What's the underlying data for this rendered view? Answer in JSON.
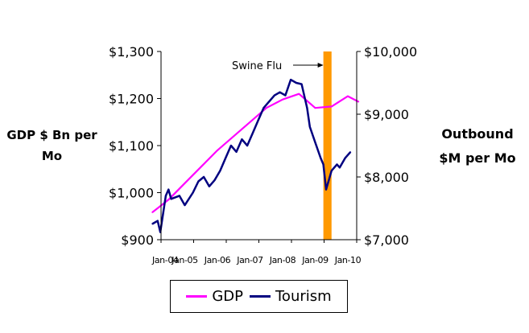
{
  "chart_data": {
    "type": "line",
    "title": "",
    "ylabel": "GDP $ Bn per Mo",
    "y2label": "Outbound $M per Mo",
    "ylim": [
      900,
      1300
    ],
    "y2lim": [
      7000,
      10000
    ],
    "yticks": [
      "$900",
      "$1,000",
      "$1,100",
      "$1,200",
      "$1,300"
    ],
    "y2ticks": [
      "$7,000",
      "$8,000",
      "$9,000",
      "$10,000"
    ],
    "xticks": [
      "Jan-04",
      "Jan-05",
      "Jan-06",
      "Jan-07",
      "Jan-08",
      "Jan-09",
      "Jan-10"
    ],
    "legend_position": "bottom",
    "annotation": {
      "text": "Swine Flu",
      "start": "Apr-09",
      "end": "Jul-09",
      "color": "#FF9900"
    },
    "series": [
      {
        "name": "GDP",
        "axis": "left",
        "color": "#FF00FF",
        "points": [
          [
            "Jan-04",
            958
          ],
          [
            "Jul-04",
            985
          ],
          [
            "Jan-05",
            1020
          ],
          [
            "Jul-05",
            1055
          ],
          [
            "Jan-06",
            1090
          ],
          [
            "Jul-06",
            1120
          ],
          [
            "Jan-07",
            1150
          ],
          [
            "Jul-07",
            1180
          ],
          [
            "Jan-08",
            1198
          ],
          [
            "Jul-08",
            1210
          ],
          [
            "Jan-09",
            1180
          ],
          [
            "Jul-09",
            1183
          ],
          [
            "Jan-10",
            1205
          ],
          [
            "May-10",
            1193
          ]
        ]
      },
      {
        "name": "Tourism",
        "axis": "right",
        "color": "#000080",
        "points": [
          [
            "Jan-04",
            7250
          ],
          [
            "Mar-04",
            7300
          ],
          [
            "Apr-04",
            7120
          ],
          [
            "Jun-04",
            7700
          ],
          [
            "Jul-04",
            7800
          ],
          [
            "Aug-04",
            7650
          ],
          [
            "Nov-04",
            7700
          ],
          [
            "Jan-05",
            7550
          ],
          [
            "Apr-05",
            7750
          ],
          [
            "Jun-05",
            7930
          ],
          [
            "Aug-05",
            8000
          ],
          [
            "Oct-05",
            7850
          ],
          [
            "Dec-05",
            7950
          ],
          [
            "Feb-06",
            8100
          ],
          [
            "Apr-06",
            8300
          ],
          [
            "Jun-06",
            8500
          ],
          [
            "Aug-06",
            8400
          ],
          [
            "Oct-06",
            8600
          ],
          [
            "Dec-06",
            8500
          ],
          [
            "Feb-07",
            8700
          ],
          [
            "Apr-07",
            8900
          ],
          [
            "Jun-07",
            9100
          ],
          [
            "Aug-07",
            9200
          ],
          [
            "Oct-07",
            9300
          ],
          [
            "Dec-07",
            9350
          ],
          [
            "Feb-08",
            9300
          ],
          [
            "Apr-08",
            9550
          ],
          [
            "Jun-08",
            9500
          ],
          [
            "Aug-08",
            9480
          ],
          [
            "Oct-08",
            9100
          ],
          [
            "Nov-08",
            8800
          ],
          [
            "Jan-09",
            8550
          ],
          [
            "Mar-09",
            8300
          ],
          [
            "Apr-09",
            8200
          ],
          [
            "May-09",
            7800
          ],
          [
            "Jul-09",
            8100
          ],
          [
            "Sep-09",
            8200
          ],
          [
            "Oct-09",
            8150
          ],
          [
            "Dec-09",
            8300
          ],
          [
            "Feb-10",
            8400
          ]
        ]
      }
    ]
  }
}
